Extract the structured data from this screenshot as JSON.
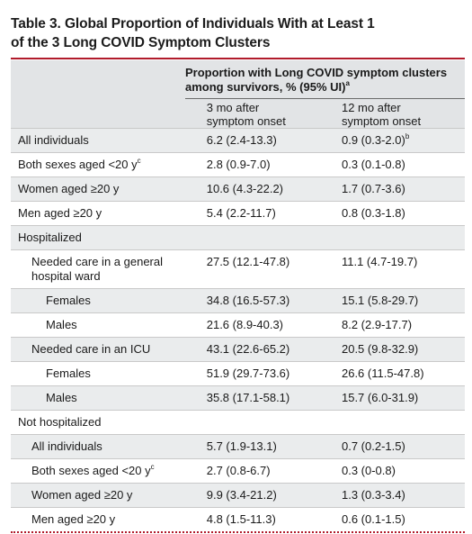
{
  "title": {
    "line1": "Table 3. Global Proportion of Individuals With at Least 1",
    "line2": "of the 3 Long COVID Symptom Clusters"
  },
  "header": {
    "spanner_line1": "Proportion with Long COVID symptom clusters",
    "spanner_line2": "among survivors, % (95% UI)",
    "spanner_note": "a",
    "col1_line1": "3 mo after",
    "col1_line2": "symptom onset",
    "col2_line1": "12 mo after",
    "col2_line2": "symptom onset"
  },
  "rows": [
    {
      "label": "All individuals",
      "label_note": "",
      "v3": "6.2 (2.4-13.3)",
      "v12": "0.9 (0.3-2.0)",
      "v12_note": "b"
    },
    {
      "label": "Both sexes aged <20 y",
      "label_note": "c",
      "v3": "2.8 (0.9-7.0)",
      "v12": "0.3 (0.1-0.8)",
      "v12_note": ""
    },
    {
      "label": "Women aged ≥20 y",
      "label_note": "",
      "v3": "10.6 (4.3-22.2)",
      "v12": "1.7 (0.7-3.6)",
      "v12_note": ""
    },
    {
      "label": "Men aged ≥20 y",
      "label_note": "",
      "v3": "5.4 (2.2-11.7)",
      "v12": "0.8 (0.3-1.8)",
      "v12_note": ""
    },
    {
      "label": "Hospitalized",
      "label_note": "",
      "v3": "",
      "v12": "",
      "v12_note": ""
    },
    {
      "label": "Needed care in a general",
      "label_line2": "hospital ward",
      "label_note": "",
      "v3": "27.5 (12.1-47.8)",
      "v12": "11.1 (4.7-19.7)",
      "v12_note": ""
    },
    {
      "label": "Females",
      "label_note": "",
      "v3": "34.8 (16.5-57.3)",
      "v12": "15.1 (5.8-29.7)",
      "v12_note": ""
    },
    {
      "label": "Males",
      "label_note": "",
      "v3": "21.6 (8.9-40.3)",
      "v12": "8.2 (2.9-17.7)",
      "v12_note": ""
    },
    {
      "label": "Needed care in an ICU",
      "label_note": "",
      "v3": "43.1 (22.6-65.2)",
      "v12": "20.5 (9.8-32.9)",
      "v12_note": ""
    },
    {
      "label": "Females",
      "label_note": "",
      "v3": "51.9 (29.7-73.6)",
      "v12": "26.6 (11.5-47.8)",
      "v12_note": ""
    },
    {
      "label": "Males",
      "label_note": "",
      "v3": "35.8 (17.1-58.1)",
      "v12": "15.7 (6.0-31.9)",
      "v12_note": ""
    },
    {
      "label": "Not hospitalized",
      "label_note": "",
      "v3": "",
      "v12": "",
      "v12_note": ""
    },
    {
      "label": "All individuals",
      "label_note": "",
      "v3": "5.7 (1.9-13.1)",
      "v12": "0.7 (0.2-1.5)",
      "v12_note": ""
    },
    {
      "label": "Both sexes aged <20 y",
      "label_note": "c",
      "v3": "2.7 (0.8-6.7)",
      "v12": "0.3 (0-0.8)",
      "v12_note": ""
    },
    {
      "label": "Women aged ≥20 y",
      "label_note": "",
      "v3": "9.9 (3.4-21.2)",
      "v12": "1.3 (0.3-3.4)",
      "v12_note": ""
    },
    {
      "label": "Men aged ≥20 y",
      "label_note": "",
      "v3": "4.8 (1.5-11.3)",
      "v12": "0.6 (0.1-1.5)",
      "v12_note": ""
    }
  ]
}
